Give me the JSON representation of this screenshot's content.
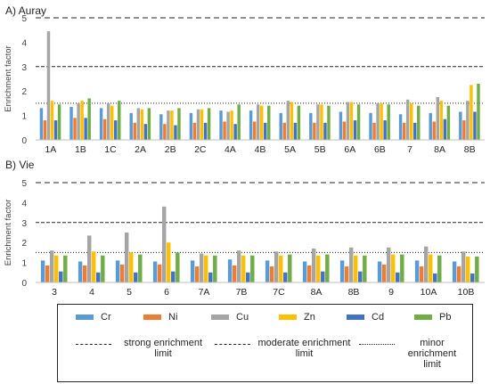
{
  "legend": {
    "items": [
      {
        "label": "Cr",
        "color": "#5b9bd5"
      },
      {
        "label": "Ni",
        "color": "#ed7d31"
      },
      {
        "label": "Cu",
        "color": "#a5a5a5"
      },
      {
        "label": "Zn",
        "color": "#ffc000"
      },
      {
        "label": "Cd",
        "color": "#4472c4"
      },
      {
        "label": "Pb",
        "color": "#70ad47"
      }
    ],
    "limits": [
      {
        "label": "strong enrichment limit",
        "style": "dashed"
      },
      {
        "label": "moderate enrichment limit",
        "style": "dense-dash"
      },
      {
        "label": "minor enrichment limit",
        "style": "dotted"
      }
    ]
  },
  "chart_data": [
    {
      "type": "bar",
      "title": "A) Auray",
      "xlabel": "",
      "ylabel": "Enrichment factor",
      "ylim": [
        0,
        5
      ],
      "yticks": [
        0,
        1,
        2,
        3,
        4,
        5
      ],
      "reference_lines": [
        {
          "name": "strong enrichment limit",
          "value": 5
        },
        {
          "name": "moderate enrichment limit",
          "value": 3
        },
        {
          "name": "minor enrichment limit",
          "value": 1.5
        }
      ],
      "categories": [
        "1A",
        "1B",
        "1C",
        "2A",
        "2B",
        "2C",
        "4A",
        "4B",
        "5A",
        "5B",
        "6A",
        "6B",
        "7",
        "8A",
        "8B"
      ],
      "series": [
        {
          "name": "Cr",
          "values": [
            1.3,
            1.35,
            1.3,
            1.1,
            1.05,
            1.1,
            1.2,
            1.2,
            1.1,
            1.1,
            1.15,
            1.1,
            1.05,
            1.1,
            1.15
          ]
        },
        {
          "name": "Ni",
          "values": [
            0.8,
            0.9,
            0.85,
            0.7,
            0.65,
            0.7,
            0.75,
            0.75,
            0.7,
            0.7,
            0.75,
            0.7,
            0.7,
            0.75,
            0.8
          ]
        },
        {
          "name": "Cu",
          "values": [
            4.45,
            1.5,
            1.5,
            1.3,
            1.2,
            1.25,
            1.15,
            1.45,
            1.6,
            1.45,
            1.55,
            1.5,
            1.65,
            1.75,
            1.6
          ]
        },
        {
          "name": "Zn",
          "values": [
            1.6,
            1.6,
            1.4,
            1.25,
            1.2,
            1.25,
            1.2,
            1.4,
            1.55,
            1.45,
            1.55,
            1.5,
            1.5,
            1.6,
            2.25
          ]
        },
        {
          "name": "Cd",
          "values": [
            0.8,
            0.9,
            0.8,
            0.65,
            0.6,
            0.7,
            0.65,
            0.7,
            0.7,
            0.7,
            0.8,
            0.8,
            0.7,
            0.85,
            1.15
          ]
        },
        {
          "name": "Pb",
          "values": [
            1.45,
            1.7,
            1.6,
            1.3,
            1.3,
            1.3,
            1.45,
            1.4,
            1.4,
            1.4,
            1.45,
            1.45,
            1.4,
            1.4,
            2.3
          ]
        }
      ]
    },
    {
      "type": "bar",
      "title": "B) Vie",
      "xlabel": "",
      "ylabel": "Enrichment factor",
      "ylim": [
        0,
        5
      ],
      "yticks": [
        0,
        1,
        2,
        3,
        4,
        5
      ],
      "reference_lines": [
        {
          "name": "strong enrichment limit",
          "value": 5
        },
        {
          "name": "moderate enrichment limit",
          "value": 3
        },
        {
          "name": "minor enrichment limit",
          "value": 1.5
        }
      ],
      "categories": [
        "3",
        "4",
        "5",
        "6",
        "7A",
        "7B",
        "7C",
        "8A",
        "8B",
        "9",
        "10A",
        "10B"
      ],
      "series": [
        {
          "name": "Cr",
          "values": [
            1.1,
            1.05,
            1.1,
            1.05,
            1.1,
            1.15,
            1.1,
            1.05,
            1.1,
            1.05,
            1.1,
            1.05
          ]
        },
        {
          "name": "Ni",
          "values": [
            0.85,
            0.85,
            0.9,
            0.9,
            0.8,
            0.85,
            0.8,
            0.85,
            0.8,
            0.9,
            0.8,
            0.8
          ]
        },
        {
          "name": "Cu",
          "values": [
            1.6,
            2.35,
            2.5,
            3.8,
            1.45,
            1.6,
            1.55,
            1.7,
            1.75,
            1.75,
            1.8,
            1.55
          ]
        },
        {
          "name": "Zn",
          "values": [
            1.35,
            1.55,
            1.5,
            2.0,
            1.35,
            1.35,
            1.35,
            1.35,
            1.35,
            1.4,
            1.4,
            1.3
          ]
        },
        {
          "name": "Cd",
          "values": [
            0.55,
            0.5,
            0.5,
            0.55,
            0.5,
            0.5,
            0.5,
            0.55,
            0.55,
            0.5,
            0.45,
            0.45
          ]
        },
        {
          "name": "Pb",
          "values": [
            1.35,
            1.35,
            1.4,
            1.5,
            1.35,
            1.35,
            1.4,
            1.4,
            1.35,
            1.4,
            1.35,
            1.3
          ]
        }
      ]
    }
  ]
}
